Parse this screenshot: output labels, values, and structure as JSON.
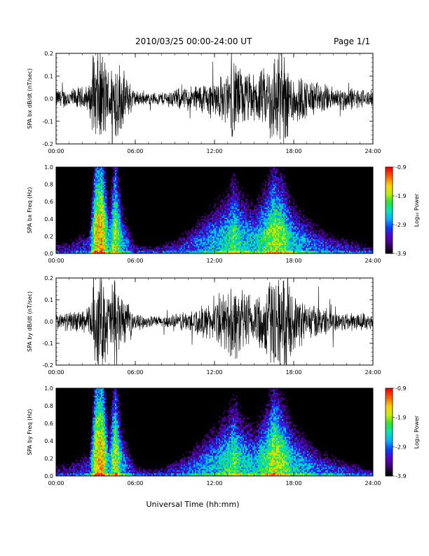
{
  "header": {
    "date_range": "2010/03/25  00:00-24:00 UT",
    "page": "Page 1/1"
  },
  "x_axis_label": "Universal Time (hh:mm)",
  "colors": {
    "trace": "#000000",
    "spectrogram_background": "#000000",
    "colormap": [
      "#000000",
      "#3d006e",
      "#5a00c8",
      "#0040ff",
      "#00b0ff",
      "#00e8b0",
      "#30e030",
      "#c0f000",
      "#ffd000",
      "#ff6000",
      "#ff0000"
    ]
  },
  "chart_data": [
    {
      "type": "line",
      "ylabel": "SPA bx dB/dt (nT/sec)",
      "xlim": [
        "00:00",
        "24:00"
      ],
      "ylim": [
        -0.2,
        0.2
      ],
      "x_ticks": [
        "00:00",
        "06:00",
        "12:00",
        "18:00",
        "24:00"
      ],
      "y_ticks": [
        "-0.2",
        "-0.1",
        "0.0",
        "0.1",
        "0.2"
      ],
      "envelope": {
        "x_hours": [
          0,
          1,
          2,
          2.5,
          3,
          3.5,
          4,
          4.5,
          5,
          6,
          7,
          8,
          9,
          10,
          11,
          12,
          13,
          13.5,
          14,
          15,
          16,
          16.5,
          17,
          17.5,
          18,
          19,
          20,
          21,
          22,
          23,
          24
        ],
        "amplitude": [
          0.05,
          0.05,
          0.06,
          0.07,
          0.25,
          0.25,
          0.14,
          0.25,
          0.15,
          0.04,
          0.03,
          0.035,
          0.05,
          0.06,
          0.08,
          0.1,
          0.13,
          0.22,
          0.15,
          0.12,
          0.16,
          0.25,
          0.25,
          0.2,
          0.14,
          0.1,
          0.08,
          0.06,
          0.06,
          0.05,
          0.04
        ]
      }
    },
    {
      "type": "heatmap",
      "ylabel": "SPA bx Freq (Hz)",
      "xlim": [
        "00:00",
        "24:00"
      ],
      "ylim": [
        0.0,
        1.0
      ],
      "x_ticks": [
        "00:00",
        "06:00",
        "12:00",
        "18:00",
        "24:00"
      ],
      "y_ticks": [
        "0.0",
        "0.2",
        "0.4",
        "0.6",
        "0.8",
        "1.0"
      ],
      "colorbar": {
        "label": "Log₁₀ Power",
        "range": [
          -3.9,
          -0.9
        ],
        "ticks": [
          "-0.9",
          "-1.9",
          "-2.9",
          "-3.9"
        ]
      },
      "activity": {
        "x_hours": [
          0,
          1,
          2,
          2.5,
          3,
          3.5,
          4,
          4.5,
          5,
          6,
          7,
          8,
          9,
          10,
          11,
          12,
          13,
          13.5,
          14,
          15,
          16,
          16.5,
          17,
          17.5,
          18,
          19,
          20,
          21,
          22,
          23,
          24
        ],
        "log10_power": [
          -3.6,
          -3.5,
          -3.3,
          -3.2,
          -1.6,
          -1.4,
          -2.6,
          -1.7,
          -2.6,
          -3.5,
          -3.6,
          -3.5,
          -3.3,
          -3.1,
          -2.8,
          -2.6,
          -2.4,
          -2.1,
          -2.4,
          -2.6,
          -2.1,
          -1.8,
          -1.9,
          -2.2,
          -2.5,
          -2.8,
          -3.0,
          -3.2,
          -3.3,
          -3.4,
          -3.5
        ],
        "extent_hz": [
          0.2,
          0.2,
          0.3,
          0.3,
          1.0,
          1.0,
          0.5,
          0.9,
          0.5,
          0.15,
          0.12,
          0.15,
          0.2,
          0.3,
          0.4,
          0.5,
          0.6,
          0.7,
          0.6,
          0.5,
          0.65,
          0.75,
          0.7,
          0.6,
          0.5,
          0.4,
          0.3,
          0.25,
          0.2,
          0.15,
          0.1
        ]
      }
    },
    {
      "type": "line",
      "ylabel": "SPA by dB/dt (nT/sec)",
      "xlim": [
        "00:00",
        "24:00"
      ],
      "ylim": [
        -0.2,
        0.2
      ],
      "x_ticks": [
        "00:00",
        "06:00",
        "12:00",
        "18:00",
        "24:00"
      ],
      "y_ticks": [
        "-0.2",
        "-0.1",
        "0.0",
        "0.1",
        "0.2"
      ],
      "envelope": {
        "x_hours": [
          0,
          1,
          2,
          2.5,
          3,
          3.5,
          4,
          4.5,
          5,
          6,
          7,
          8,
          9,
          10,
          11,
          12,
          13,
          13.5,
          14,
          15,
          16,
          16.5,
          17,
          17.5,
          18,
          19,
          20,
          21,
          22,
          23,
          24
        ],
        "amplitude": [
          0.04,
          0.05,
          0.06,
          0.08,
          0.25,
          0.25,
          0.16,
          0.25,
          0.13,
          0.04,
          0.03,
          0.03,
          0.04,
          0.06,
          0.08,
          0.1,
          0.16,
          0.22,
          0.16,
          0.14,
          0.2,
          0.25,
          0.25,
          0.2,
          0.15,
          0.1,
          0.08,
          0.06,
          0.05,
          0.05,
          0.04
        ]
      }
    },
    {
      "type": "heatmap",
      "ylabel": "SPA by Freq (Hz)",
      "xlim": [
        "00:00",
        "24:00"
      ],
      "ylim": [
        0.0,
        1.0
      ],
      "x_ticks": [
        "00:00",
        "06:00",
        "12:00",
        "18:00",
        "24:00"
      ],
      "y_ticks": [
        "0.0",
        "0.2",
        "0.4",
        "0.6",
        "0.8",
        "1.0"
      ],
      "colorbar": {
        "label": "Log₁₀ Power",
        "range": [
          -3.9,
          -0.9
        ],
        "ticks": [
          "-0.9",
          "-1.9",
          "-2.9",
          "-3.9"
        ]
      },
      "activity": {
        "x_hours": [
          0,
          1,
          2,
          2.5,
          3,
          3.5,
          4,
          4.5,
          5,
          6,
          7,
          8,
          9,
          10,
          11,
          12,
          13,
          13.5,
          14,
          15,
          16,
          16.5,
          17,
          17.5,
          18,
          19,
          20,
          21,
          22,
          23,
          24
        ],
        "log10_power": [
          -3.6,
          -3.5,
          -3.3,
          -3.2,
          -1.6,
          -1.4,
          -2.6,
          -1.7,
          -2.6,
          -3.4,
          -3.6,
          -3.5,
          -3.3,
          -3.0,
          -2.8,
          -2.6,
          -2.3,
          -2.1,
          -2.4,
          -2.6,
          -2.1,
          -1.7,
          -1.9,
          -2.2,
          -2.5,
          -2.7,
          -3.0,
          -3.1,
          -3.3,
          -3.4,
          -3.5
        ],
        "extent_hz": [
          0.2,
          0.2,
          0.3,
          0.3,
          1.0,
          1.0,
          0.5,
          0.9,
          0.5,
          0.15,
          0.12,
          0.15,
          0.2,
          0.3,
          0.4,
          0.5,
          0.6,
          0.7,
          0.6,
          0.5,
          0.65,
          0.75,
          0.7,
          0.6,
          0.5,
          0.4,
          0.3,
          0.25,
          0.2,
          0.15,
          0.1
        ]
      }
    }
  ]
}
